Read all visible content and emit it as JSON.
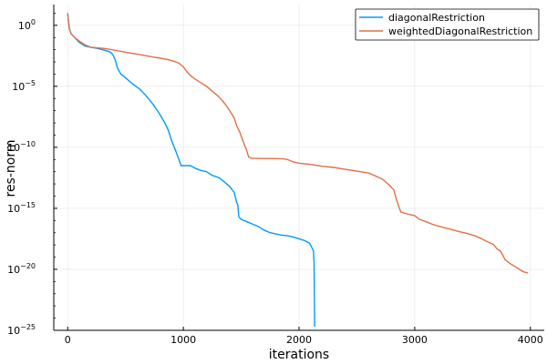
{
  "chart_data": {
    "type": "line",
    "title": "",
    "xlabel": "iterations",
    "ylabel": "res-norm",
    "xlim": [
      -120,
      4120
    ],
    "ylim_exponent": [
      -25,
      1.7
    ],
    "yscale": "log10",
    "grid": true,
    "legend_position": "top-right",
    "x_ticks": [
      {
        "value": 0,
        "label": "0"
      },
      {
        "value": 1000,
        "label": "1000"
      },
      {
        "value": 2000,
        "label": "2000"
      },
      {
        "value": 3000,
        "label": "3000"
      },
      {
        "value": 4000,
        "label": "4000"
      }
    ],
    "y_ticks": [
      {
        "exp": 0,
        "label": "10",
        "sup": "0"
      },
      {
        "exp": -5,
        "label": "10",
        "sup": "−5"
      },
      {
        "exp": -10,
        "label": "10",
        "sup": "−10"
      },
      {
        "exp": -15,
        "label": "10",
        "sup": "−15"
      },
      {
        "exp": -20,
        "label": "10",
        "sup": "−20"
      },
      {
        "exp": -25,
        "label": "10",
        "sup": "−25"
      }
    ],
    "series": [
      {
        "name": "diagonalRestriction",
        "color": "#009AFA",
        "points_log10": [
          [
            0,
            1.0
          ],
          [
            5,
            0.5
          ],
          [
            15,
            -0.3
          ],
          [
            30,
            -0.7
          ],
          [
            60,
            -1.0
          ],
          [
            100,
            -1.4
          ],
          [
            150,
            -1.7
          ],
          [
            200,
            -1.8
          ],
          [
            260,
            -1.9
          ],
          [
            300,
            -2.0
          ],
          [
            340,
            -2.1
          ],
          [
            370,
            -2.2
          ],
          [
            390,
            -2.4
          ],
          [
            410,
            -2.8
          ],
          [
            430,
            -3.5
          ],
          [
            460,
            -4.0
          ],
          [
            500,
            -4.3
          ],
          [
            560,
            -4.8
          ],
          [
            620,
            -5.2
          ],
          [
            680,
            -5.8
          ],
          [
            740,
            -6.5
          ],
          [
            790,
            -7.2
          ],
          [
            840,
            -8.0
          ],
          [
            870,
            -8.6
          ],
          [
            900,
            -9.5
          ],
          [
            930,
            -10.2
          ],
          [
            950,
            -10.7
          ],
          [
            980,
            -11.5
          ],
          [
            1000,
            -11.5
          ],
          [
            1060,
            -11.5
          ],
          [
            1100,
            -11.7
          ],
          [
            1150,
            -11.9
          ],
          [
            1200,
            -12.0
          ],
          [
            1250,
            -12.3
          ],
          [
            1310,
            -12.5
          ],
          [
            1350,
            -12.8
          ],
          [
            1400,
            -13.2
          ],
          [
            1440,
            -13.7
          ],
          [
            1460,
            -14.5
          ],
          [
            1470,
            -14.7
          ],
          [
            1480,
            -15.7
          ],
          [
            1500,
            -15.9
          ],
          [
            1550,
            -16.1
          ],
          [
            1600,
            -16.3
          ],
          [
            1650,
            -16.5
          ],
          [
            1700,
            -16.8
          ],
          [
            1750,
            -17.0
          ],
          [
            1800,
            -17.1
          ],
          [
            1850,
            -17.2
          ],
          [
            1900,
            -17.25
          ],
          [
            1950,
            -17.35
          ],
          [
            2000,
            -17.5
          ],
          [
            2050,
            -17.65
          ],
          [
            2090,
            -17.85
          ],
          [
            2110,
            -18.2
          ],
          [
            2125,
            -18.5
          ],
          [
            2130,
            -19.5
          ],
          [
            2135,
            -24.7
          ]
        ]
      },
      {
        "name": "weightedDiagonalRestriction",
        "color": "#E26F46",
        "points_log10": [
          [
            0,
            1.0
          ],
          [
            5,
            0.5
          ],
          [
            15,
            -0.3
          ],
          [
            30,
            -0.7
          ],
          [
            60,
            -1.0
          ],
          [
            100,
            -1.3
          ],
          [
            150,
            -1.6
          ],
          [
            200,
            -1.8
          ],
          [
            260,
            -1.85
          ],
          [
            320,
            -1.9
          ],
          [
            380,
            -2.0
          ],
          [
            440,
            -2.1
          ],
          [
            500,
            -2.2
          ],
          [
            560,
            -2.3
          ],
          [
            620,
            -2.4
          ],
          [
            680,
            -2.5
          ],
          [
            740,
            -2.6
          ],
          [
            800,
            -2.7
          ],
          [
            860,
            -2.8
          ],
          [
            920,
            -2.95
          ],
          [
            960,
            -3.1
          ],
          [
            1000,
            -3.4
          ],
          [
            1030,
            -3.8
          ],
          [
            1060,
            -4.1
          ],
          [
            1100,
            -4.4
          ],
          [
            1150,
            -4.7
          ],
          [
            1200,
            -5.0
          ],
          [
            1250,
            -5.4
          ],
          [
            1300,
            -5.8
          ],
          [
            1340,
            -6.2
          ],
          [
            1380,
            -6.7
          ],
          [
            1420,
            -7.3
          ],
          [
            1440,
            -7.6
          ],
          [
            1460,
            -8.2
          ],
          [
            1490,
            -8.8
          ],
          [
            1520,
            -9.6
          ],
          [
            1545,
            -10.2
          ],
          [
            1565,
            -10.8
          ],
          [
            1590,
            -10.9
          ],
          [
            1700,
            -10.92
          ],
          [
            1800,
            -10.93
          ],
          [
            1870,
            -10.95
          ],
          [
            1900,
            -11.0
          ],
          [
            1950,
            -11.2
          ],
          [
            2000,
            -11.3
          ],
          [
            2100,
            -11.4
          ],
          [
            2200,
            -11.55
          ],
          [
            2300,
            -11.65
          ],
          [
            2400,
            -11.8
          ],
          [
            2500,
            -11.95
          ],
          [
            2600,
            -12.1
          ],
          [
            2650,
            -12.3
          ],
          [
            2720,
            -12.6
          ],
          [
            2780,
            -13.1
          ],
          [
            2820,
            -13.5
          ],
          [
            2840,
            -14.2
          ],
          [
            2860,
            -14.8
          ],
          [
            2880,
            -15.3
          ],
          [
            2950,
            -15.5
          ],
          [
            3000,
            -15.6
          ],
          [
            3040,
            -15.9
          ],
          [
            3100,
            -16.1
          ],
          [
            3150,
            -16.3
          ],
          [
            3200,
            -16.45
          ],
          [
            3300,
            -16.7
          ],
          [
            3380,
            -16.9
          ],
          [
            3450,
            -17.05
          ],
          [
            3520,
            -17.25
          ],
          [
            3580,
            -17.5
          ],
          [
            3620,
            -17.7
          ],
          [
            3680,
            -17.95
          ],
          [
            3710,
            -18.3
          ],
          [
            3740,
            -18.5
          ],
          [
            3760,
            -18.8
          ],
          [
            3780,
            -19.2
          ],
          [
            3820,
            -19.5
          ],
          [
            3880,
            -19.85
          ],
          [
            3940,
            -20.2
          ],
          [
            3980,
            -20.3
          ]
        ]
      }
    ]
  }
}
